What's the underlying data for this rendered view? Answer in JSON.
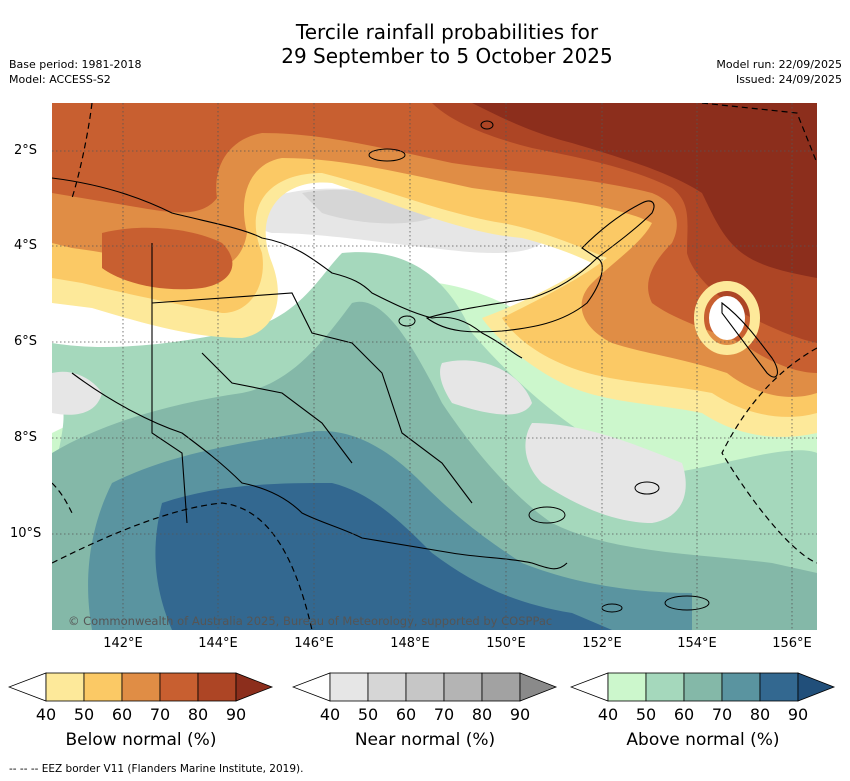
{
  "title_line1": "Tercile rainfall probabilities for",
  "title_line2": "29 September to 5 October 2025",
  "base_period": "Base period: 1981-2018",
  "model": "Model: ACCESS-S2",
  "model_run": "Model run: 22/09/2025",
  "issued": "Issued: 24/09/2025",
  "map": {
    "lat_labels": [
      "2°S",
      "4°S",
      "6°S",
      "8°S",
      "10°S"
    ],
    "lon_labels": [
      "142°E",
      "144°E",
      "146°E",
      "148°E",
      "150°E",
      "152°E",
      "154°E",
      "156°E"
    ],
    "copyright": "© Commonwealth of Australia 2025, Bureau of Meteorology, supported by COSPPac"
  },
  "colorbars": [
    {
      "title": "Below normal (%)",
      "ticks": [
        "40",
        "50",
        "60",
        "70",
        "80",
        "90"
      ],
      "colors": [
        "#ffffff",
        "#fde99a",
        "#fbc965",
        "#e08d45",
        "#c85f30",
        "#ad4525",
        "#8c2e1c"
      ]
    },
    {
      "title": "Near normal (%)",
      "ticks": [
        "40",
        "50",
        "60",
        "70",
        "80",
        "90"
      ],
      "colors": [
        "#ffffff",
        "#e6e6e6",
        "#d6d6d6",
        "#c6c6c6",
        "#b4b4b4",
        "#a2a2a2",
        "#8a8a8a"
      ]
    },
    {
      "title": "Above normal (%)",
      "ticks": [
        "40",
        "50",
        "60",
        "70",
        "80",
        "90"
      ],
      "colors": [
        "#ffffff",
        "#ccf7cc",
        "#a5d8bc",
        "#84b8a8",
        "#5a94a0",
        "#336890",
        "#214f7a"
      ]
    }
  ],
  "footer": "--  --  -- EEZ border V11 (Flanders Marine Institute, 2019)."
}
